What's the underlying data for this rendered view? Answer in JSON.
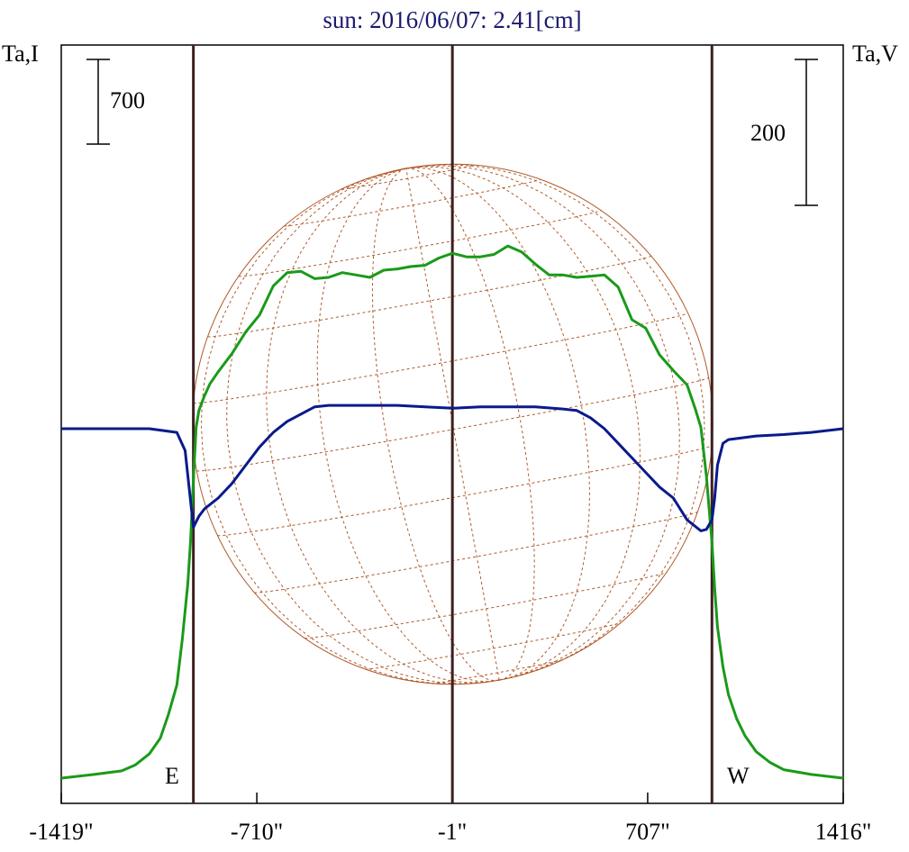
{
  "title": "sun: 2016/06/07: 2.41[cm]",
  "left_axis_label": "Ta,I",
  "right_axis_label": "Ta,V",
  "scale_bars": [
    {
      "side": "left",
      "label": "700"
    },
    {
      "side": "right",
      "label": "200"
    }
  ],
  "limb_labels": {
    "east": "E",
    "west": "W"
  },
  "colors": {
    "intensity": "#1a9a1a",
    "polarization": "#0a1a8c",
    "limb_lines": "#3d1f1f",
    "disk": "#b05a2a",
    "frame": "#000000",
    "title": "#1a1a6e"
  },
  "chart_data": {
    "type": "line",
    "title": "sun: 2016/06/07: 2.41[cm]",
    "xlabel": "",
    "ylabel": "Ta,I",
    "y2label": "Ta,V",
    "xlim": [
      -1419,
      1416
    ],
    "x_ticks": [
      -1419,
      -710,
      -1,
      707,
      1416
    ],
    "x_tick_labels": [
      "-1419\"",
      "-710\"",
      "-1\"",
      "707\"",
      "1416\""
    ],
    "vertical_lines": [
      -940,
      -1,
      940
    ],
    "scale_bar_values": {
      "I": 700,
      "V": 200
    },
    "grid": false,
    "legend": "none",
    "series": [
      {
        "key": "I",
        "x": [
          -1419,
          -1300,
          -1200,
          -1150,
          -1100,
          -1060,
          -1030,
          -1000,
          -980,
          -960,
          -950,
          -940,
          -930,
          -920,
          -900,
          -880,
          -850,
          -800,
          -750,
          -700,
          -650,
          -600,
          -550,
          -500,
          -450,
          -400,
          -350,
          -300,
          -250,
          -200,
          -150,
          -100,
          -50,
          -1,
          50,
          100,
          150,
          200,
          250,
          300,
          350,
          400,
          450,
          500,
          550,
          600,
          650,
          700,
          750,
          800,
          850,
          880,
          900,
          920,
          930,
          940,
          950,
          960,
          980,
          1000,
          1030,
          1060,
          1100,
          1150,
          1200,
          1300,
          1416
        ],
        "y": [
          30,
          60,
          90,
          140,
          230,
          360,
          560,
          800,
          1180,
          1640,
          2000,
          2500,
          2930,
          3070,
          3190,
          3290,
          3390,
          3540,
          3720,
          3860,
          4100,
          4210,
          4220,
          4160,
          4170,
          4210,
          4190,
          4170,
          4230,
          4240,
          4260,
          4270,
          4330,
          4370,
          4340,
          4340,
          4360,
          4430,
          4380,
          4280,
          4190,
          4190,
          4170,
          4180,
          4190,
          4090,
          3820,
          3750,
          3530,
          3400,
          3280,
          3080,
          2930,
          2530,
          2250,
          1980,
          1600,
          1280,
          950,
          720,
          520,
          380,
          250,
          160,
          100,
          60,
          30
        ]
      },
      {
        "key": "V",
        "x": [
          -1419,
          -1200,
          -1100,
          -1000,
          -970,
          -950,
          -940,
          -920,
          -900,
          -850,
          -800,
          -750,
          -700,
          -650,
          -600,
          -550,
          -500,
          -450,
          -400,
          -300,
          -200,
          -100,
          -1,
          100,
          200,
          300,
          400,
          450,
          500,
          550,
          600,
          650,
          700,
          750,
          800,
          850,
          900,
          920,
          940,
          950,
          960,
          980,
          1000,
          1100,
          1200,
          1300,
          1416
        ],
        "y": [
          0,
          0,
          0,
          -5,
          -30,
          -100,
          -135,
          -120,
          -110,
          -95,
          -75,
          -50,
          -25,
          -5,
          10,
          20,
          30,
          32,
          32,
          32,
          32,
          30,
          28,
          30,
          30,
          30,
          27,
          25,
          15,
          0,
          -20,
          -40,
          -60,
          -80,
          -95,
          -125,
          -140,
          -138,
          -125,
          -95,
          -50,
          -20,
          -15,
          -10,
          -8,
          -5,
          0
        ]
      }
    ]
  }
}
